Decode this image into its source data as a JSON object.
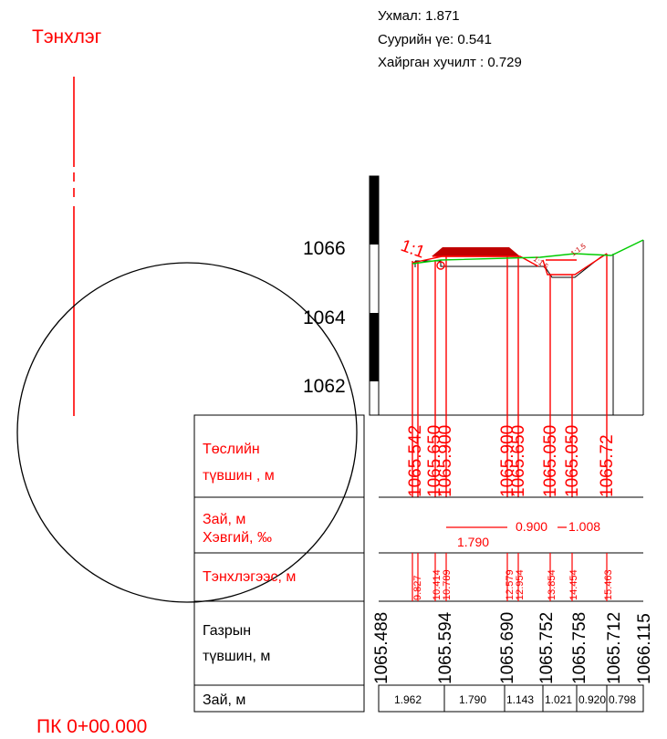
{
  "header": {
    "axis_label": "Тэнхлэг",
    "info": {
      "slope": "Ухмал: 1.871",
      "base_width": "Суурийн үе: 0.541",
      "area": "Хайрган хучилт : 0.729"
    }
  },
  "elevation_labels": [
    "1066",
    "1064",
    "1062"
  ],
  "slope_marks": {
    "left": "1:1",
    "right1": "1:1.5",
    "right2": "1:1.5"
  },
  "table": {
    "row_design": "Төслийн\nтүвшин , м",
    "row_dist_slope": "Зай, м\nХэвгий, ‰",
    "row_offset": "Тэнхлэгээс, м",
    "row_ground": "Газрын\nтүвшин, м",
    "row_dist": "Зай, м"
  },
  "design_levels": [
    "1065.542",
    "1065.650",
    "1065.900",
    "1065.900",
    "1065.650",
    "1065.050",
    "1065.050",
    "1065.72"
  ],
  "slope_values": [
    "1.790",
    "0.900",
    "1.008"
  ],
  "offsets": [
    "9.827",
    "10.414",
    "10.789",
    "12.579",
    "12.954",
    "13.854",
    "14.454",
    "15.463"
  ],
  "ground_levels": [
    "1065.488",
    "1065.594",
    "1065.690",
    "1065.752",
    "1065.758",
    "1065.712",
    "1066.115"
  ],
  "distances": [
    "1.962",
    "1.790",
    "1.143",
    "1.021",
    "0.920",
    "0.798"
  ],
  "station": "ПК 0+00.000",
  "colors": {
    "red": "#ff0000",
    "green": "#00cc00",
    "black": "#000000",
    "dark_red": "#c00000"
  }
}
